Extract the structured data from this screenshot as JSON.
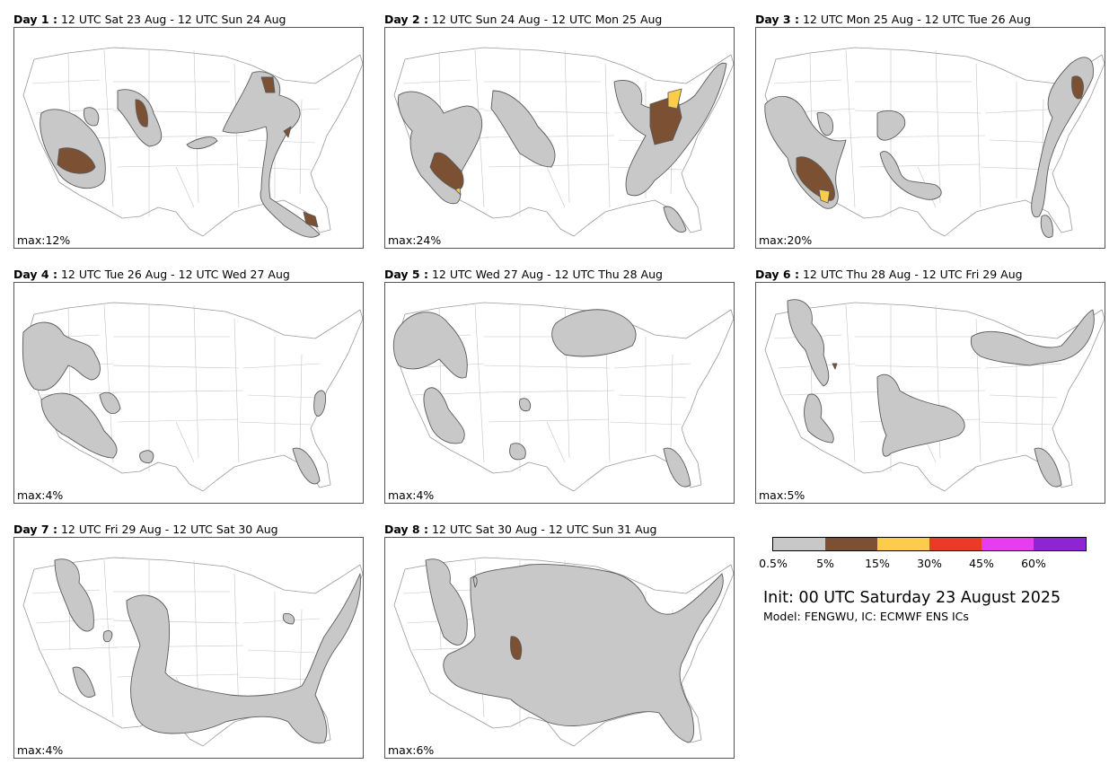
{
  "panels": [
    {
      "day": "Day 1 :",
      "period": "12 UTC Sat 23 Aug - 12 UTC Sun 24 Aug",
      "max": "max:12%"
    },
    {
      "day": "Day 2 :",
      "period": "12 UTC Sun 24 Aug - 12 UTC Mon 25 Aug",
      "max": "max:24%"
    },
    {
      "day": "Day 3 :",
      "period": "12 UTC Mon 25 Aug - 12 UTC Tue 26 Aug",
      "max": "max:20%"
    },
    {
      "day": "Day 4 :",
      "period": "12 UTC Tue 26 Aug - 12 UTC Wed 27 Aug",
      "max": "max:4%"
    },
    {
      "day": "Day 5 :",
      "period": "12 UTC Wed 27 Aug - 12 UTC Thu 28 Aug",
      "max": "max:4%"
    },
    {
      "day": "Day 6 :",
      "period": "12 UTC Thu 28 Aug - 12 UTC Fri 29 Aug",
      "max": "max:5%"
    },
    {
      "day": "Day 7 :",
      "period": "12 UTC Fri 29 Aug - 12 UTC Sat 30 Aug",
      "max": "max:4%"
    },
    {
      "day": "Day 8 :",
      "period": "12 UTC Sat 30 Aug - 12 UTC Sun 31 Aug",
      "max": "max:6%"
    }
  ],
  "colorbar": {
    "colors": [
      "#c8c8c8",
      "#7b5033",
      "#fbcd4b",
      "#ec3a28",
      "#e83cf0",
      "#8e24d4"
    ],
    "labels": [
      "0.5%",
      "5%",
      "15%",
      "30%",
      "45%",
      "60%"
    ]
  },
  "init": "Init: 00 UTC Saturday 23 August 2025",
  "model": "Model: FENGWU, IC: ECMWF ENS ICs"
}
